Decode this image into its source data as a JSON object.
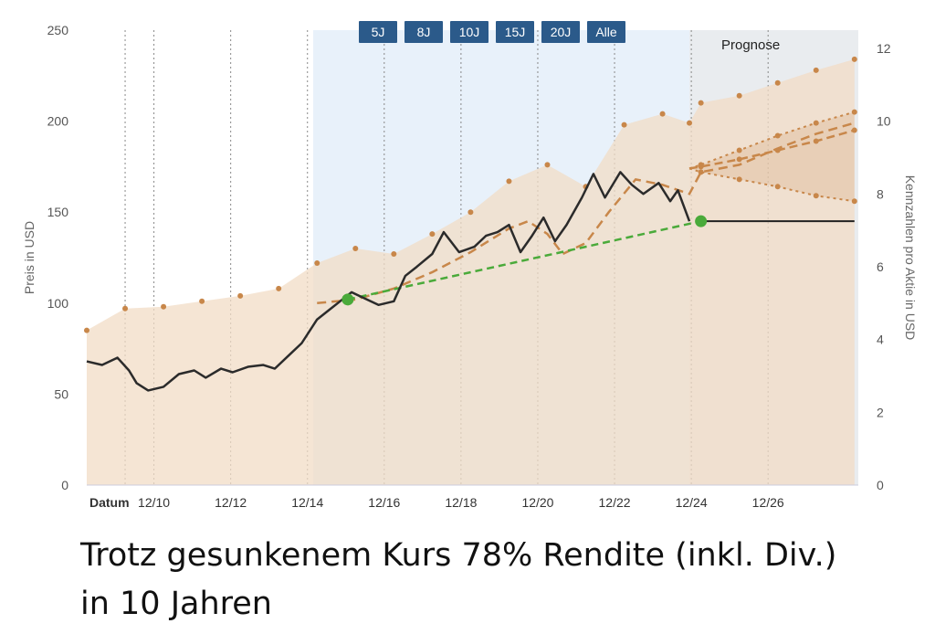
{
  "chart_data": {
    "type": "line",
    "x_axis": {
      "first_label": "Datum",
      "tick_labels": [
        "12/10",
        "12/12",
        "12/14",
        "12/16",
        "12/18",
        "12/20",
        "12/22",
        "12/24",
        "12/26"
      ],
      "range": [
        2008.2,
        2028.3
      ]
    },
    "y_left": {
      "title": "Preis in USD",
      "range": [
        0,
        250
      ],
      "ticks": [
        "250",
        "200",
        "150",
        "100",
        "50",
        "0"
      ]
    },
    "y_right": {
      "title": "Kennzahlen pro Aktie in USD",
      "range": [
        0,
        12.5
      ],
      "ticks": [
        "12",
        "10",
        "8",
        "6",
        "4",
        "2",
        "0"
      ]
    },
    "forecast_label": "Prognose",
    "forecast_start": 2023.9,
    "highlight_start": 2014.1,
    "range_buttons": [
      "5J",
      "8J",
      "10J",
      "15J",
      "20J",
      "Alle"
    ],
    "grid": "vertical dotted",
    "colors": {
      "price_line": "#2b2b2b",
      "fair_value": "#c8874a",
      "trend": "#4aaa3a",
      "area": "#f1dcc6",
      "highlight": "#e8f1fa",
      "forecast_band": "#c8874a",
      "button": "#2b5a8a"
    },
    "series": [
      {
        "values_right_axis": true,
        "x": [
          2008.2,
          2009.2,
          2010.2,
          2011.2,
          2012.2,
          2013.2,
          2014.2,
          2015.2,
          2016.2,
          2017.2,
          2018.2,
          2019.2,
          2020.2,
          2021.2,
          2022.2,
          2023.2,
          2023.9,
          2024.2,
          2025.2,
          2026.2,
          2027.2,
          2028.2
        ],
        "y": [
          4.25,
          4.85,
          4.9,
          5.05,
          5.2,
          5.4,
          6.1,
          6.5,
          6.35,
          6.9,
          7.5,
          8.35,
          8.8,
          8.2,
          9.9,
          10.2,
          9.95,
          10.5,
          10.7,
          11.05,
          11.4,
          11.7
        ]
      },
      {
        "x": [
          2008.2,
          2008.6,
          2009.0,
          2009.3,
          2009.5,
          2009.8,
          2010.2,
          2010.6,
          2011.0,
          2011.3,
          2011.7,
          2012.0,
          2012.4,
          2012.8,
          2013.1,
          2013.5,
          2013.8,
          2014.2,
          2014.5,
          2014.8,
          2015.1,
          2015.4,
          2015.8,
          2016.2,
          2016.5,
          2016.8,
          2017.2,
          2017.5,
          2017.9,
          2018.3,
          2018.6,
          2018.9,
          2019.2,
          2019.5,
          2019.8,
          2020.1,
          2020.4,
          2020.7,
          2021.1,
          2021.4,
          2021.7,
          2022.1,
          2022.4,
          2022.7,
          2023.1,
          2023.4,
          2023.6,
          2023.9
        ],
        "y": [
          68,
          66,
          70,
          63,
          56,
          52,
          54,
          61,
          63,
          59,
          64,
          62,
          65,
          66,
          64,
          72,
          78,
          91,
          96,
          101,
          106,
          103,
          99,
          101,
          115,
          120,
          127,
          139,
          128,
          131,
          137,
          139,
          143,
          128,
          137,
          147,
          134,
          143,
          158,
          171,
          158,
          172,
          165,
          160,
          166,
          156,
          162,
          145
        ]
      },
      {
        "x": [
          2014.2,
          2015.2,
          2016.2,
          2017.2,
          2018.2,
          2019.2,
          2019.7,
          2020.2,
          2020.6,
          2021.2,
          2021.8,
          2022.5,
          2023.2,
          2023.9,
          2024.2,
          2025.2,
          2026.2,
          2027.2,
          2028.2
        ],
        "y": [
          100,
          102,
          108,
          117,
          128,
          141,
          145,
          138,
          127,
          133,
          150,
          168,
          165,
          160,
          172,
          176,
          185,
          193,
          199
        ]
      },
      {
        "x": [
          2015.0,
          2024.2
        ],
        "y": [
          102,
          145
        ]
      },
      {
        "x": [
          2024.2,
          2028.2
        ],
        "y": [
          145,
          145
        ]
      }
    ],
    "forecast_lines": [
      {
        "x": [
          2023.9,
          2024.2,
          2025.2,
          2026.2,
          2027.2,
          2028.2
        ],
        "y": [
          8.7,
          8.75,
          8.95,
          9.2,
          9.45,
          9.75
        ]
      },
      {
        "x": [
          2023.9,
          2024.2,
          2025.2,
          2026.2,
          2027.2,
          2028.2
        ],
        "y": [
          8.7,
          8.8,
          9.2,
          9.6,
          9.95,
          10.25
        ]
      },
      {
        "x": [
          2023.9,
          2024.2,
          2025.2,
          2026.2,
          2027.2,
          2028.2
        ],
        "y": [
          8.7,
          8.6,
          8.4,
          8.2,
          7.95,
          7.8
        ]
      }
    ]
  },
  "caption": {
    "line1": "Trotz gesunkenem Kurs 78% Rendite (inkl. Div.)",
    "line2": "in 10 Jahren"
  }
}
